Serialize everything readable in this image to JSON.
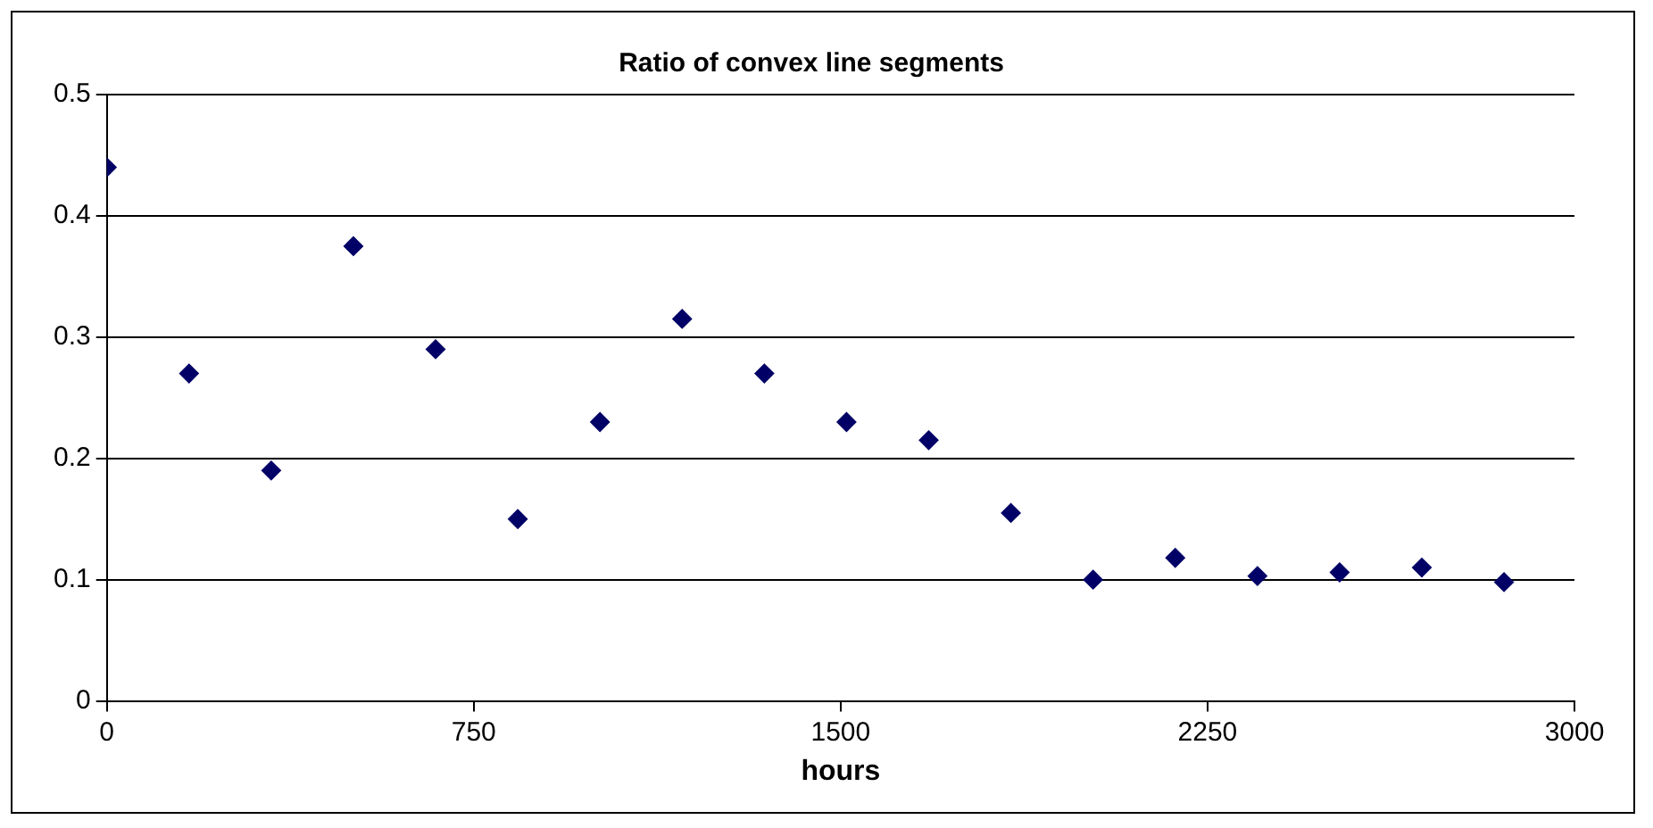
{
  "chart_data": {
    "type": "scatter",
    "title": "Ratio of convex line segments",
    "xlabel": "hours",
    "x": [
      0,
      168,
      336,
      504,
      672,
      840,
      1008,
      1176,
      1344,
      1512,
      1680,
      1848,
      2016,
      2184,
      2352,
      2520,
      2688,
      2856
    ],
    "series": [
      {
        "color": "#000066",
        "values": [
          0.44,
          0.27,
          0.19,
          0.375,
          0.29,
          0.15,
          0.23,
          0.315,
          0.27,
          0.23,
          0.215,
          0.155,
          0.1,
          0.118,
          0.103,
          0.106,
          0.11,
          0.098
        ]
      }
    ],
    "xlim": [
      0,
      3000
    ],
    "xticks": [
      0,
      750,
      1500,
      2250,
      3000
    ],
    "ylim": [
      0,
      0.5
    ],
    "yticks": [
      0,
      0.1,
      0.2,
      0.3,
      0.4,
      0.5
    ],
    "grid": "y",
    "legend": false,
    "marker": "diamond"
  }
}
